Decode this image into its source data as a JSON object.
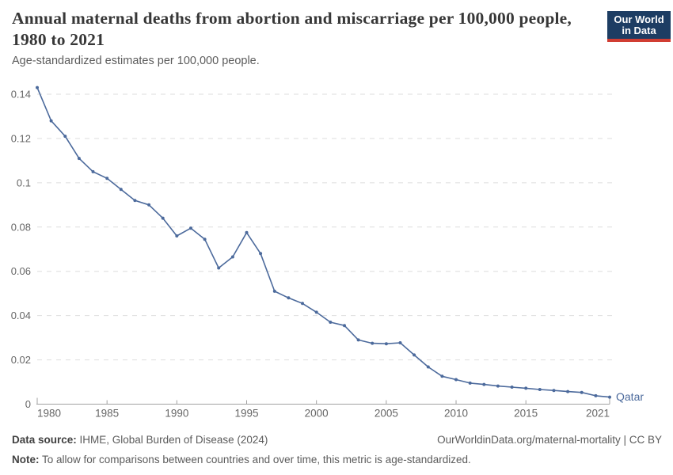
{
  "header": {
    "title": "Annual maternal deaths from abortion and miscarriage per 100,000 people, 1980 to 2021",
    "subtitle": "Age-standardized estimates per 100,000 people.",
    "logo_line1": "Our World",
    "logo_line2": "in Data"
  },
  "chart_data": {
    "type": "line",
    "title": "Annual maternal deaths from abortion and miscarriage per 100,000 people, 1980 to 2021",
    "subtitle": "Age-standardized estimates per 100,000 people.",
    "xlabel": "",
    "ylabel": "",
    "xlim": [
      1980,
      2021
    ],
    "ylim": [
      0,
      0.14
    ],
    "grid": "horizontal-dashed",
    "legend_position": "end-of-line-label",
    "x_ticks": [
      1980,
      1985,
      1990,
      1995,
      2000,
      2005,
      2010,
      2015,
      2021
    ],
    "y_ticks": [
      0,
      0.02,
      0.04,
      0.06,
      0.08,
      0.1,
      0.12,
      0.14
    ],
    "x": [
      1980,
      1981,
      1982,
      1983,
      1984,
      1985,
      1986,
      1987,
      1988,
      1989,
      1990,
      1991,
      1992,
      1993,
      1994,
      1995,
      1996,
      1997,
      1998,
      1999,
      2000,
      2001,
      2002,
      2003,
      2004,
      2005,
      2006,
      2007,
      2008,
      2009,
      2010,
      2011,
      2012,
      2013,
      2014,
      2015,
      2016,
      2017,
      2018,
      2019,
      2020,
      2021
    ],
    "series": [
      {
        "name": "Qatar",
        "color": "#4c6a9c",
        "values": [
          0.143,
          0.128,
          0.121,
          0.111,
          0.105,
          0.102,
          0.097,
          0.092,
          0.09,
          0.084,
          0.076,
          0.0795,
          0.0745,
          0.0615,
          0.0665,
          0.0775,
          0.068,
          0.051,
          0.048,
          0.0455,
          0.0415,
          0.037,
          0.0355,
          0.029,
          0.0275,
          0.0273,
          0.0277,
          0.0222,
          0.0168,
          0.0126,
          0.0111,
          0.0095,
          0.0089,
          0.0082,
          0.0077,
          0.0072,
          0.0066,
          0.0062,
          0.0057,
          0.0053,
          0.0038,
          0.0032
        ]
      }
    ]
  },
  "footer": {
    "datasource_label": "Data source:",
    "datasource_value": " IHME, Global Burden of Disease (2024)",
    "rights": "OurWorldinData.org/maternal-mortality | CC BY",
    "note_label": "Note:",
    "note_value": " To allow for comparisons between countries and over time, this metric is age-standardized."
  },
  "colors": {
    "line": "#4c6a9c",
    "logo_bg": "#1d3d63",
    "logo_bar": "#d13d33",
    "gridline": "#dedede",
    "axis": "#a1a1a1",
    "tick_label": "#666666",
    "title_text": "#373737",
    "body_text": "#5b5b5b"
  }
}
